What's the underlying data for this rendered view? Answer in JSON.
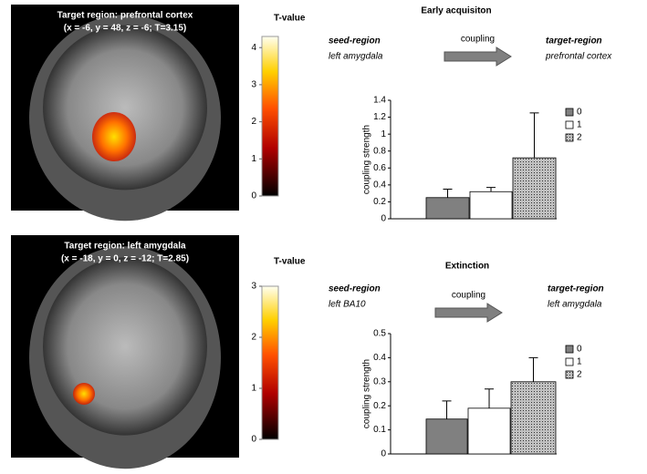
{
  "chart_data": [
    {
      "type": "bar",
      "title": "Early acquisiton",
      "image_title": "Target region: prefrontal cortex",
      "image_coords": "(x = -6, y = 48, z = -6; T=3.15)",
      "colorbar": {
        "title": "T-value",
        "lim": [
          0,
          4.3
        ],
        "ticks": [
          0,
          1,
          2,
          3,
          4
        ]
      },
      "seed_label": "seed-region",
      "seed_region": "left amygdala",
      "coupling_label": "coupling",
      "target_label": "target-region",
      "target_region": "prefrontal cortex",
      "ylabel": "coupling strength",
      "categories": [
        null
      ],
      "series": [
        {
          "name": "0",
          "color": "#808080",
          "values": [
            0.25
          ],
          "errors": [
            0.1
          ]
        },
        {
          "name": "1",
          "color": "#ffffff",
          "values": [
            0.32
          ],
          "errors": [
            0.05
          ]
        },
        {
          "name": "2",
          "color": "#c0c0c0",
          "pattern": "dotted",
          "values": [
            0.72
          ],
          "errors": [
            0.53
          ]
        }
      ],
      "ylim": [
        0,
        1.4
      ],
      "yticks": [
        0,
        0.2,
        0.4,
        0.6,
        0.8,
        1,
        1.2,
        1.4
      ]
    },
    {
      "type": "bar",
      "title": "Extinction",
      "image_title": "Target region: left amygdala",
      "image_coords": "(x = -18, y = 0, z = -12; T=2.85)",
      "colorbar": {
        "title": "T-value",
        "lim": [
          0,
          3
        ],
        "ticks": [
          0,
          1,
          2,
          3
        ]
      },
      "seed_label": "seed-region",
      "seed_region": "left BA10",
      "coupling_label": "coupling",
      "target_label": "target-region",
      "target_region": "left amygdala",
      "ylabel": "coupling strength",
      "categories": [
        null
      ],
      "series": [
        {
          "name": "0",
          "color": "#808080",
          "values": [
            0.145
          ],
          "errors": [
            0.075
          ]
        },
        {
          "name": "1",
          "color": "#ffffff",
          "values": [
            0.19
          ],
          "errors": [
            0.08
          ]
        },
        {
          "name": "2",
          "color": "#c0c0c0",
          "pattern": "dotted",
          "values": [
            0.3
          ],
          "errors": [
            0.1
          ]
        }
      ],
      "ylim": [
        0,
        0.5
      ],
      "yticks": [
        0,
        0.1,
        0.2,
        0.3,
        0.4,
        0.5
      ]
    }
  ]
}
